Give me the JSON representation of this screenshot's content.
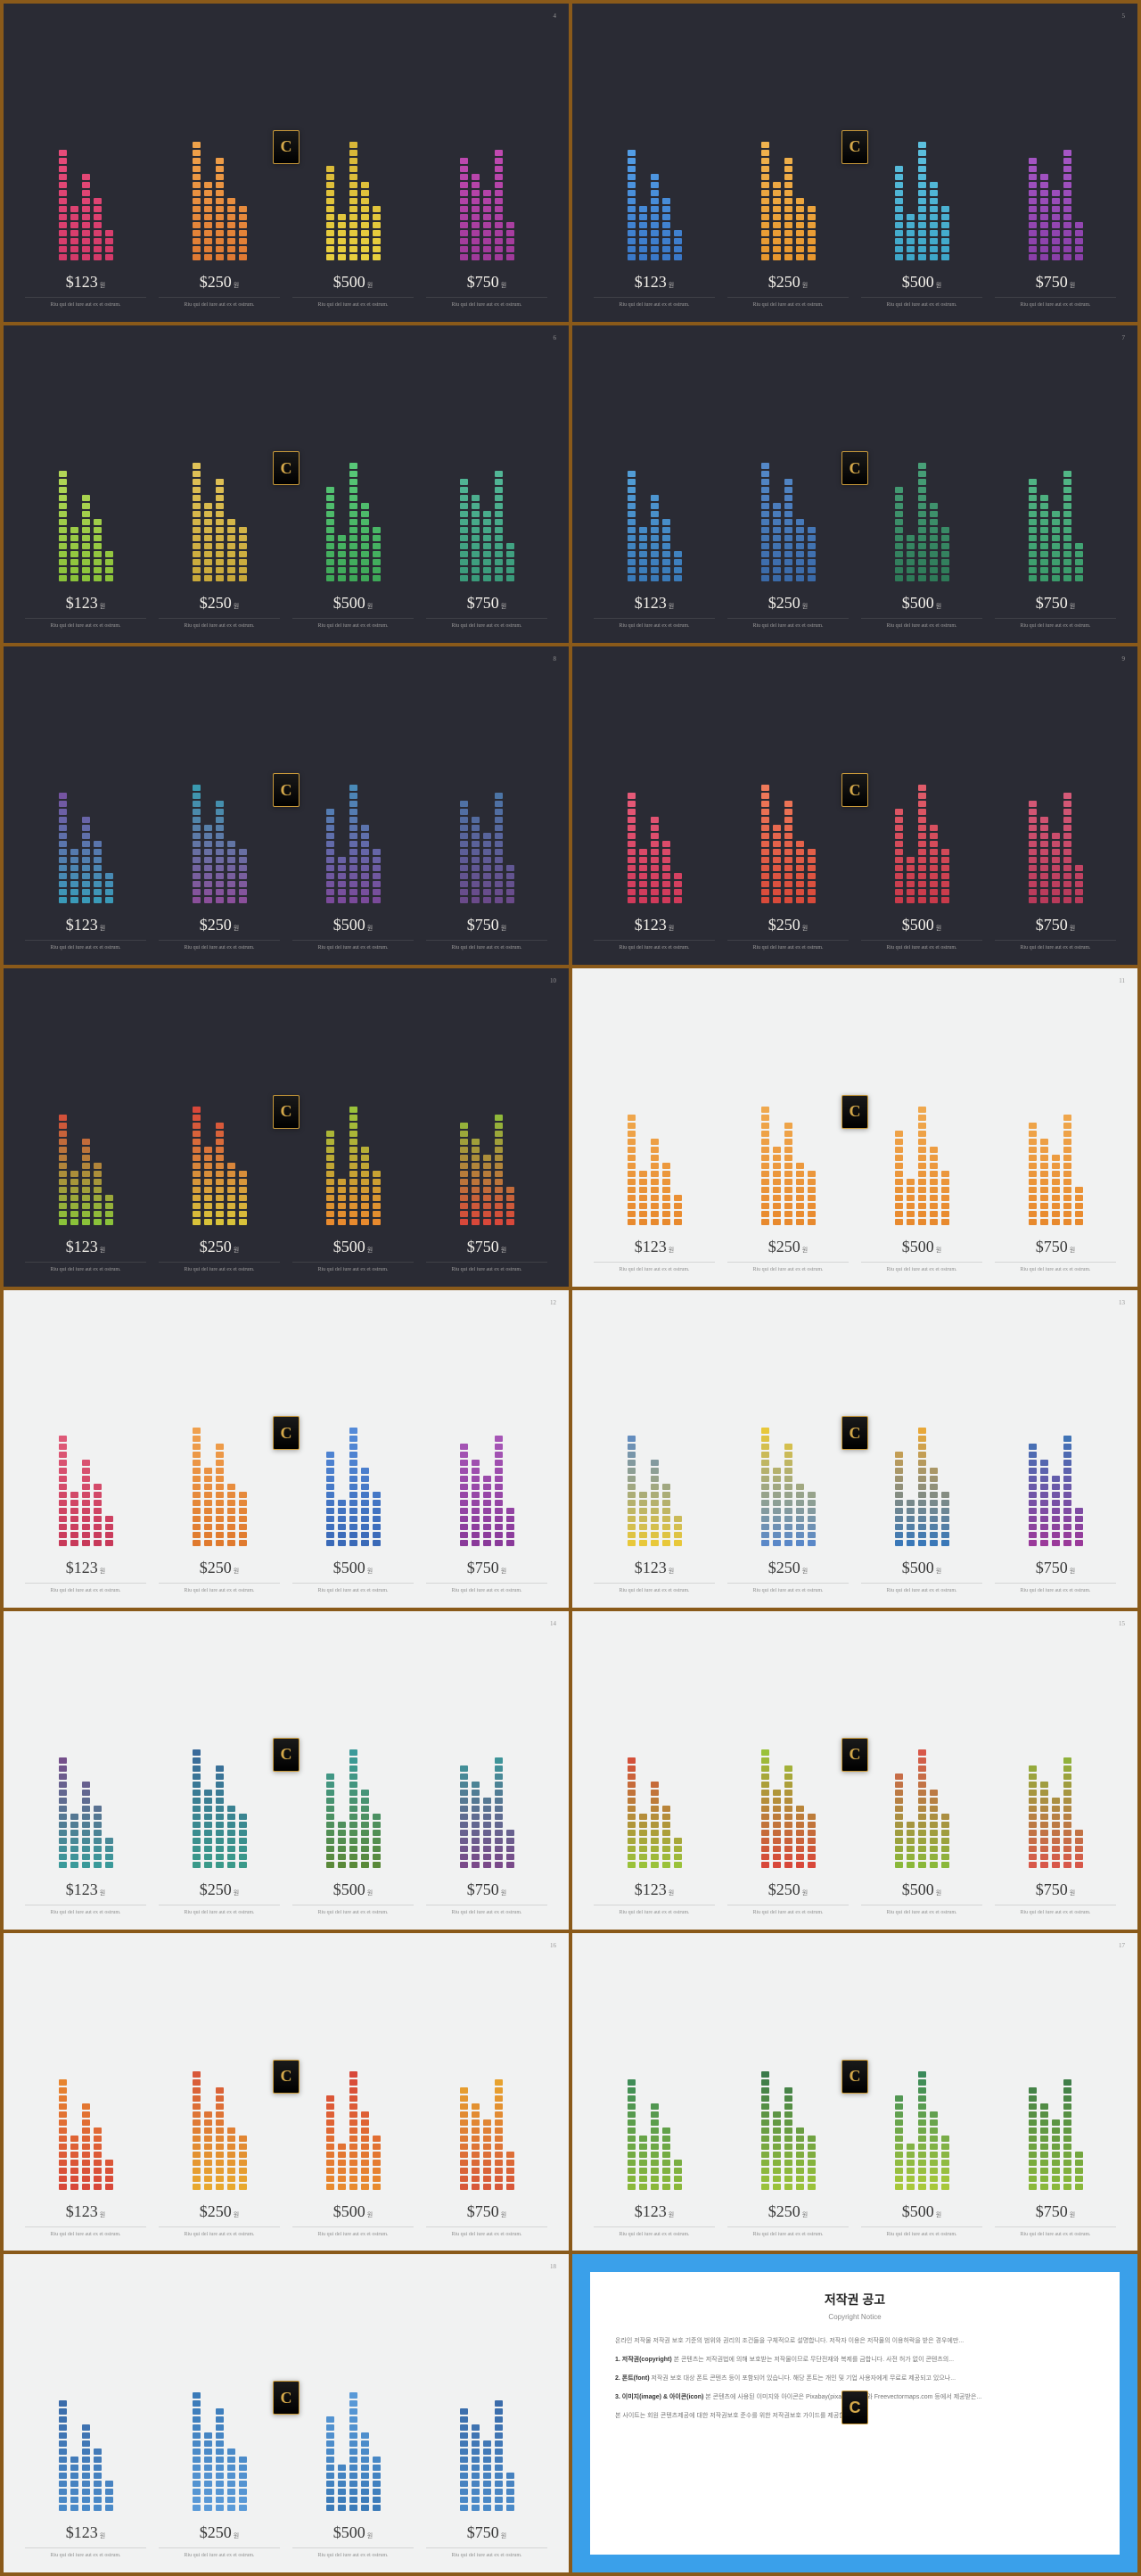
{
  "bar_heights": [
    14,
    7,
    11,
    8,
    4,
    15,
    10,
    13,
    8,
    7,
    12,
    6,
    15,
    10,
    7,
    13,
    11,
    9,
    14,
    5
  ],
  "bar_max_segments": 15,
  "bars_per_group": 5,
  "groups_per_slide": 4,
  "price_labels": [
    "$123",
    "$250",
    "$500",
    "$750"
  ],
  "price_unit": "원",
  "chart_caption": "Riu qui del iure aut ex et ostrum.",
  "badge_letter": "C",
  "slides": [
    {
      "bg": "dark",
      "page": "4",
      "palettes": [
        [
          "#d43a6a",
          "#e84c7a"
        ],
        [
          "#e07a33",
          "#efa24a"
        ],
        [
          "#e8cf3e",
          "#d8b638"
        ],
        [
          "#a03a9a",
          "#c24ab2"
        ]
      ]
    },
    {
      "bg": "dark",
      "page": "5",
      "palettes": [
        [
          "#3a78c8",
          "#54a0e8"
        ],
        [
          "#e8972e",
          "#efb24e"
        ],
        [
          "#3ea6c8",
          "#5cc0de"
        ],
        [
          "#8a3fa8",
          "#a858c8"
        ]
      ]
    },
    {
      "bg": "dark",
      "page": "6",
      "palettes": [
        [
          "#8ac23a",
          "#b4d858"
        ],
        [
          "#c8a83a",
          "#e0c258"
        ],
        [
          "#3ea858",
          "#58c878"
        ],
        [
          "#3a9a7a",
          "#54b898"
        ]
      ]
    },
    {
      "bg": "dark",
      "page": "7",
      "palettes": [
        [
          "#3a7ab8",
          "#54a0d8"
        ],
        [
          "#3a6aa8",
          "#5488c8"
        ],
        [
          "#2e7a58",
          "#48a078"
        ],
        [
          "#3a9a6a",
          "#54b888"
        ]
      ]
    },
    {
      "bg": "dark",
      "page": "8",
      "palettes": [
        [
          "#3a9ab8",
          "#7a4fa0"
        ],
        [
          "#8a4f9a",
          "#3a9ab0"
        ],
        [
          "#7a4a9a",
          "#4a8ab8"
        ],
        [
          "#6a4a8a",
          "#4a78a8"
        ]
      ]
    },
    {
      "bg": "dark",
      "page": "9",
      "palettes": [
        [
          "#d03a5a",
          "#e85c7a"
        ],
        [
          "#d84a3a",
          "#ef7a5a"
        ],
        [
          "#c83a4a",
          "#e05c6a"
        ],
        [
          "#b83a5a",
          "#d85c7a"
        ]
      ]
    },
    {
      "bg": "dark",
      "page": "10",
      "palettes": [
        [
          "#8ac23a",
          "#d8483a"
        ],
        [
          "#d8c23a",
          "#d8483a"
        ],
        [
          "#e88a2e",
          "#9ac23a"
        ],
        [
          "#d8483a",
          "#8ac23a"
        ]
      ]
    },
    {
      "bg": "light",
      "page": "11",
      "palettes": [
        [
          "#e88a2e",
          "#efa84e"
        ],
        [
          "#e88a2e",
          "#efa84e"
        ],
        [
          "#e88a2e",
          "#efa84e"
        ],
        [
          "#e88a2e",
          "#efa84e"
        ]
      ]
    },
    {
      "bg": "light",
      "page": "12",
      "palettes": [
        [
          "#c83a5a",
          "#e05c7a"
        ],
        [
          "#e07a2e",
          "#efa04e"
        ],
        [
          "#3a6ab8",
          "#548ad8"
        ],
        [
          "#8a3a9a",
          "#a858b8"
        ]
      ]
    },
    {
      "bg": "light",
      "page": "13",
      "palettes": [
        [
          "#e8c83a",
          "#5a88c8"
        ],
        [
          "#5a88c8",
          "#e8c83a"
        ],
        [
          "#3a78b8",
          "#e8a83a"
        ],
        [
          "#9a3a9a",
          "#3a78b8"
        ]
      ]
    },
    {
      "bg": "light",
      "page": "14",
      "palettes": [
        [
          "#3a9a9a",
          "#7a4a8a"
        ],
        [
          "#3a9a8a",
          "#3a6a9a"
        ],
        [
          "#5a8a3a",
          "#3a9a9a"
        ],
        [
          "#7a4a8a",
          "#3a9a9a"
        ]
      ]
    },
    {
      "bg": "light",
      "page": "15",
      "palettes": [
        [
          "#9ac23a",
          "#d8483a"
        ],
        [
          "#d8483a",
          "#9ac23a"
        ],
        [
          "#8ab83a",
          "#d8584a"
        ],
        [
          "#d8584a",
          "#8ab83a"
        ]
      ]
    },
    {
      "bg": "light",
      "page": "16",
      "palettes": [
        [
          "#d8483a",
          "#e88a2e"
        ],
        [
          "#e8a82e",
          "#d8583a"
        ],
        [
          "#e88a2e",
          "#d8483a"
        ],
        [
          "#d8583a",
          "#e8a82e"
        ]
      ]
    },
    {
      "bg": "light",
      "page": "17",
      "palettes": [
        [
          "#8ab83a",
          "#3a8a5a"
        ],
        [
          "#9ac23a",
          "#3a7a4a"
        ],
        [
          "#a8c83a",
          "#3a8a5a"
        ],
        [
          "#8ab83a",
          "#3a7a4a"
        ]
      ]
    },
    {
      "bg": "light",
      "page": "18",
      "palettes": [
        [
          "#4a8ac8",
          "#3a6aa8"
        ],
        [
          "#5a9ad8",
          "#3a7ab8"
        ],
        [
          "#3a7ab8",
          "#5a9ad8"
        ],
        [
          "#4a8ac8",
          "#3a6aa8"
        ]
      ]
    }
  ],
  "copyright": {
    "title": "저작권 공고",
    "subtitle": "Copyright Notice",
    "paragraphs": [
      "온라인 저작물 저작권 보호 기준의 범위와 권리의 조건들을 구체적으로 설명합니다. 저작자 이용은 저작물의 이용허락을 받은 경우에만...",
      "<b>1. 저작권(copyright)</b> 본 콘텐츠는 저작권법에 의해 보호받는 저작물이므로 무단전재와 복제를 금합니다. 사전 허가 없이 콘텐츠의...",
      "<b>2. 폰트(font)</b> 저작권 보호 대상 폰트 콘텐츠 등이 포함되어 있습니다. 해당 폰트는 개인 및 기업 사용자에게 무료로 제공되고 있으나...",
      "<b>3. 이미지(image) & 아이콘(icon)</b> 본 콘텐츠에 사용된 이미지와 아이콘은 Pixabay(pixabay.com)와 Freevectormaps.com 등에서 제공받은...",
      "본 사이트는 회원 콘텐츠제공에 대한 저작권보호 준수를 위한 저작권보호 가이드를 제공합니다."
    ]
  }
}
